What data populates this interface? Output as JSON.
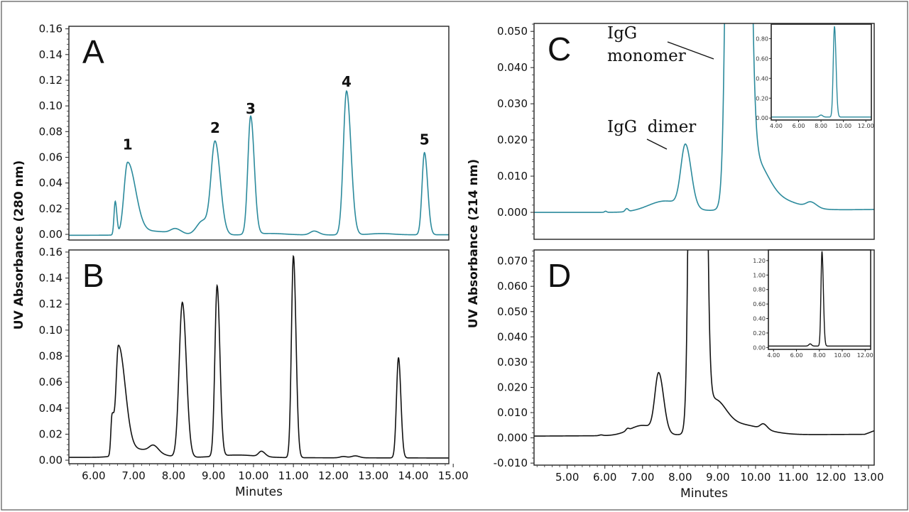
{
  "chart_data": [
    {
      "panel": "A",
      "type": "line",
      "color": "#2b8a9c",
      "ylabel": "UV Absorbance (280 nm)",
      "xlim": [
        5.38,
        14.89
      ],
      "ylim": [
        -0.0044,
        0.162
      ],
      "yticks": [
        "0.00",
        "0.02",
        "0.04",
        "0.06",
        "0.08",
        "0.10",
        "0.12",
        "0.14",
        "0.16"
      ],
      "baseline": [
        [
          5.38,
          -0.0007
        ],
        [
          14.89,
          -0.0003
        ]
      ],
      "peaks": [
        {
          "t": 6.54,
          "h": 0.026,
          "sl": 0.03,
          "sr": 0.04
        },
        {
          "t": 6.85,
          "h": 0.056,
          "sl": 0.09,
          "sr": 0.2
        },
        {
          "t": 7.5,
          "h": 0.003,
          "sl": 0.4,
          "sr": 0.4
        },
        {
          "t": 8.05,
          "h": 0.004,
          "sl": 0.12,
          "sr": 0.15
        },
        {
          "t": 8.73,
          "h": 0.011,
          "sl": 0.15,
          "sr": 0.15
        },
        {
          "t": 9.04,
          "h": 0.072,
          "sl": 0.1,
          "sr": 0.13
        },
        {
          "t": 9.93,
          "h": 0.092,
          "sl": 0.07,
          "sr": 0.09
        },
        {
          "t": 10.4,
          "h": 0.0012,
          "sl": 0.4,
          "sr": 0.4
        },
        {
          "t": 11.52,
          "h": 0.003,
          "sl": 0.1,
          "sr": 0.12
        },
        {
          "t": 12.33,
          "h": 0.112,
          "sl": 0.08,
          "sr": 0.11
        },
        {
          "t": 13.2,
          "h": 0.001,
          "sl": 0.3,
          "sr": 0.3
        },
        {
          "t": 14.28,
          "h": 0.064,
          "sl": 0.06,
          "sr": 0.08
        }
      ],
      "peak_labels": [
        {
          "text": "1",
          "t": 6.85,
          "y": 0.066
        },
        {
          "text": "2",
          "t": 9.04,
          "y": 0.079
        },
        {
          "text": "3",
          "t": 9.93,
          "y": 0.094
        },
        {
          "text": "4",
          "t": 12.33,
          "y": 0.115
        },
        {
          "text": "5",
          "t": 14.28,
          "y": 0.07
        }
      ]
    },
    {
      "panel": "B",
      "type": "line",
      "color": "#111111",
      "xlabel": "Minutes",
      "xlim": [
        5.38,
        14.89
      ],
      "ylim": [
        -0.0027,
        0.1616
      ],
      "yticks": [
        "0.00",
        "0.02",
        "0.04",
        "0.06",
        "0.08",
        "0.10",
        "0.12",
        "0.14",
        "0.16"
      ],
      "xticks": [
        "6.00",
        "7.00",
        "8.00",
        "9.00",
        "10.00",
        "11.00",
        "12.00",
        "13.00",
        "14.00",
        "15.00"
      ],
      "baseline": [
        [
          5.38,
          0.0022
        ],
        [
          14.89,
          0.0017
        ]
      ],
      "peaks": [
        {
          "t": 6.46,
          "h": 0.03,
          "sl": 0.03,
          "sr": 0.05
        },
        {
          "t": 6.62,
          "h": 0.084,
          "sl": 0.06,
          "sr": 0.17
        },
        {
          "t": 7.2,
          "h": 0.006,
          "sl": 0.4,
          "sr": 0.4
        },
        {
          "t": 7.5,
          "h": 0.005,
          "sl": 0.1,
          "sr": 0.12
        },
        {
          "t": 8.22,
          "h": 0.119,
          "sl": 0.08,
          "sr": 0.1
        },
        {
          "t": 9.09,
          "h": 0.131,
          "sl": 0.055,
          "sr": 0.07
        },
        {
          "t": 9.6,
          "h": 0.002,
          "sl": 0.5,
          "sr": 0.5
        },
        {
          "t": 10.2,
          "h": 0.004,
          "sl": 0.07,
          "sr": 0.09
        },
        {
          "t": 11.0,
          "h": 0.155,
          "sl": 0.05,
          "sr": 0.065
        },
        {
          "t": 12.25,
          "h": 0.001,
          "sl": 0.08,
          "sr": 0.08
        },
        {
          "t": 12.55,
          "h": 0.0015,
          "sl": 0.1,
          "sr": 0.1
        },
        {
          "t": 13.63,
          "h": 0.077,
          "sl": 0.05,
          "sr": 0.06
        }
      ]
    },
    {
      "panel": "C",
      "type": "line",
      "color": "#2b8a9c",
      "ylabel": "UV Absorbance (214 nm)",
      "xlim": [
        4.12,
        13.15
      ],
      "ylim": [
        -0.00745,
        0.0522
      ],
      "yticks": [
        "0.000",
        "0.010",
        "0.020",
        "0.030",
        "0.040",
        "0.050"
      ],
      "baseline": [
        [
          4.12,
          0.0
        ],
        [
          6.4,
          0.0
        ],
        [
          13.15,
          0.0008
        ]
      ],
      "peaks": [
        {
          "t": 6.02,
          "h": 0.0003,
          "sl": 0.03,
          "sr": 0.03
        },
        {
          "t": 6.58,
          "h": 0.0008,
          "sl": 0.04,
          "sr": 0.04
        },
        {
          "t": 7.6,
          "h": 0.003,
          "sl": 0.45,
          "sr": 0.5
        },
        {
          "t": 8.14,
          "h": 0.017,
          "sl": 0.12,
          "sr": 0.15
        },
        {
          "t": 9.51,
          "h": 0.9,
          "sl": 0.14,
          "sr": 0.17
        },
        {
          "t": 9.95,
          "h": 0.012,
          "sl": 0.35,
          "sr": 0.35
        },
        {
          "t": 10.5,
          "h": 0.003,
          "sl": 0.6,
          "sr": 0.6
        },
        {
          "t": 11.47,
          "h": 0.0015,
          "sl": 0.12,
          "sr": 0.15
        }
      ],
      "annotations": [
        {
          "text": "IgG",
          "line": 1
        },
        {
          "text": "monomer",
          "line": 2
        },
        {
          "text": "IgG  dimer",
          "line": 3
        }
      ]
    },
    {
      "panel": "D",
      "type": "line",
      "color": "#111111",
      "xlabel": "Minutes",
      "xlim": [
        4.12,
        13.15
      ],
      "ylim": [
        -0.0108,
        0.0744
      ],
      "yticks": [
        "-0.010",
        "0.000",
        "0.010",
        "0.020",
        "0.030",
        "0.040",
        "0.050",
        "0.060",
        "0.070"
      ],
      "xticks": [
        "5.00",
        "6.00",
        "7.00",
        "8.00",
        "9.00",
        "10.00",
        "11.00",
        "12.00",
        "13.00"
      ],
      "baseline": [
        [
          4.12,
          0.0007
        ],
        [
          12.9,
          0.0014
        ],
        [
          13.15,
          0.0028
        ]
      ],
      "peaks": [
        {
          "t": 5.9,
          "h": 0.0003,
          "sl": 0.05,
          "sr": 0.05
        },
        {
          "t": 6.6,
          "h": 0.0008,
          "sl": 0.04,
          "sr": 0.04
        },
        {
          "t": 7.0,
          "h": 0.004,
          "sl": 0.35,
          "sr": 0.35
        },
        {
          "t": 7.43,
          "h": 0.023,
          "sl": 0.1,
          "sr": 0.13
        },
        {
          "t": 8.45,
          "h": 1.3,
          "sl": 0.105,
          "sr": 0.12
        },
        {
          "t": 8.9,
          "h": 0.012,
          "sl": 0.3,
          "sr": 0.3
        },
        {
          "t": 9.6,
          "h": 0.004,
          "sl": 0.6,
          "sr": 0.6
        },
        {
          "t": 10.21,
          "h": 0.002,
          "sl": 0.08,
          "sr": 0.1
        }
      ]
    },
    {
      "panel": "C-inset",
      "type": "line",
      "color": "#2b8a9c",
      "xlim": [
        3.56,
        12.49
      ],
      "ylim": [
        -0.02,
        0.946
      ],
      "yticks": [
        "0.00",
        "0.20",
        "0.40",
        "0.60",
        "0.80"
      ],
      "xticks": [
        "4.00",
        "6.00",
        "8.00",
        "10.00",
        "12.00"
      ],
      "baseline": [
        [
          3.56,
          0.01
        ],
        [
          12.49,
          0.01
        ]
      ],
      "peaks": [
        {
          "t": 8.0,
          "h": 0.02,
          "sl": 0.15,
          "sr": 0.15
        },
        {
          "t": 9.2,
          "h": 0.91,
          "sl": 0.11,
          "sr": 0.14
        }
      ]
    },
    {
      "panel": "D-inset",
      "type": "line",
      "color": "#111111",
      "xlim": [
        3.55,
        12.48
      ],
      "ylim": [
        -0.026,
        1.346
      ],
      "yticks": [
        "0.00",
        "0.20",
        "0.40",
        "0.60",
        "0.80",
        "1.00",
        "1.20"
      ],
      "xticks": [
        "4.00",
        "6.00",
        "8.00",
        "10.00",
        "12.00"
      ],
      "baseline": [
        [
          3.55,
          0.02
        ],
        [
          12.48,
          0.02
        ]
      ],
      "peaks": [
        {
          "t": 7.2,
          "h": 0.03,
          "sl": 0.12,
          "sr": 0.12
        },
        {
          "t": 8.23,
          "h": 1.3,
          "sl": 0.09,
          "sr": 0.12
        }
      ]
    }
  ]
}
